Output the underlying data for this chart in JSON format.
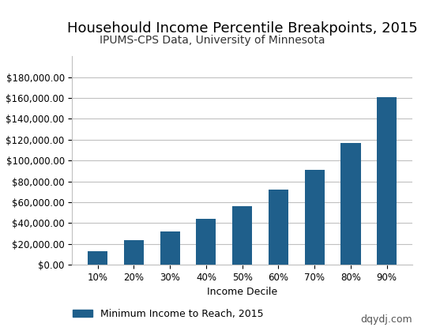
{
  "title": "Househould Income Percentile Breakpoints, 2015",
  "subtitle": "IPUMS-CPS Data, University of Minnesota",
  "xlabel": "Income Decile",
  "ylabel": "Minimum Income to Reach",
  "categories": [
    "10%",
    "20%",
    "30%",
    "40%",
    "50%",
    "60%",
    "70%",
    "80%",
    "90%"
  ],
  "values": [
    13000,
    24000,
    32000,
    44000,
    56000,
    72000,
    91000,
    117000,
    161000
  ],
  "bar_color": "#1f5f8b",
  "ylim": [
    0,
    200000
  ],
  "yticks": [
    0,
    20000,
    40000,
    60000,
    80000,
    100000,
    120000,
    140000,
    160000,
    180000
  ],
  "legend_label": "Minimum Income to Reach, 2015",
  "watermark": "dqydj.com",
  "background_color": "#ffffff",
  "grid_color": "#c0c0c0",
  "title_fontsize": 13,
  "subtitle_fontsize": 10,
  "axis_label_fontsize": 9,
  "tick_fontsize": 8.5,
  "legend_fontsize": 9,
  "watermark_fontsize": 9,
  "bar_width": 0.55
}
